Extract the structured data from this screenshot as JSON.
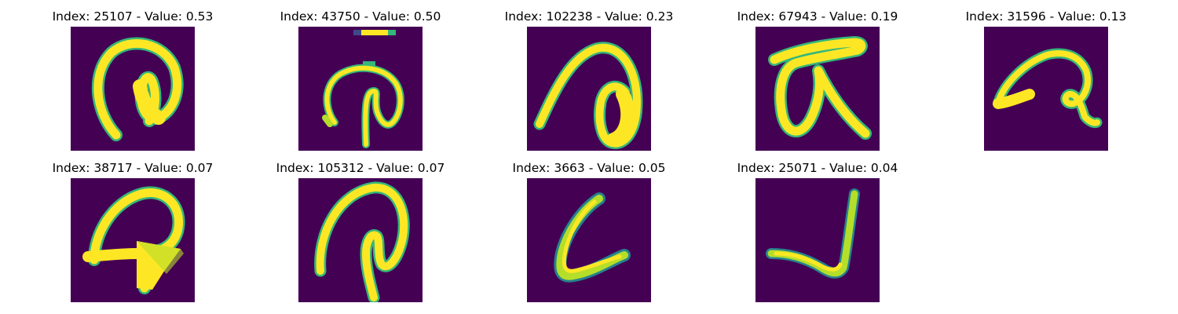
{
  "figure": {
    "panels": [
      {
        "title": "Index: 25107 - Value: 0.53",
        "glyph": "curl-with-inner-loop-tail-bottom-left"
      },
      {
        "title": "Index: 43750 - Value: 0.50",
        "glyph": "arch-with-inner-loop-stem-down"
      },
      {
        "title": "Index: 102238 - Value: 0.23",
        "glyph": "diagonal-stroke-with-loop-right"
      },
      {
        "title": "Index: 67943 - Value: 0.19",
        "glyph": "alpha-like-loop-with-diagonal"
      },
      {
        "title": "Index: 31596 - Value: 0.13",
        "glyph": "flat-arch-with-small-loop-right"
      },
      {
        "title": "Index: 38717 - Value: 0.07",
        "glyph": "arch-with-arrow-blob"
      },
      {
        "title": "Index: 105312 - Value: 0.07",
        "glyph": "arch-with-inner-stem"
      },
      {
        "title": "Index: 3663 - Value: 0.05",
        "glyph": "L-shaped-stroke"
      },
      {
        "title": "Index: 25071 - Value: 0.04",
        "glyph": "check-like-stroke"
      }
    ],
    "colors": {
      "background": "#440154",
      "stroke_core": "#fde725",
      "stroke_edge_1": "#b5de2b",
      "stroke_edge_2": "#35b779",
      "stroke_edge_3": "#26828e",
      "stroke_edge_4": "#3e4989"
    }
  }
}
